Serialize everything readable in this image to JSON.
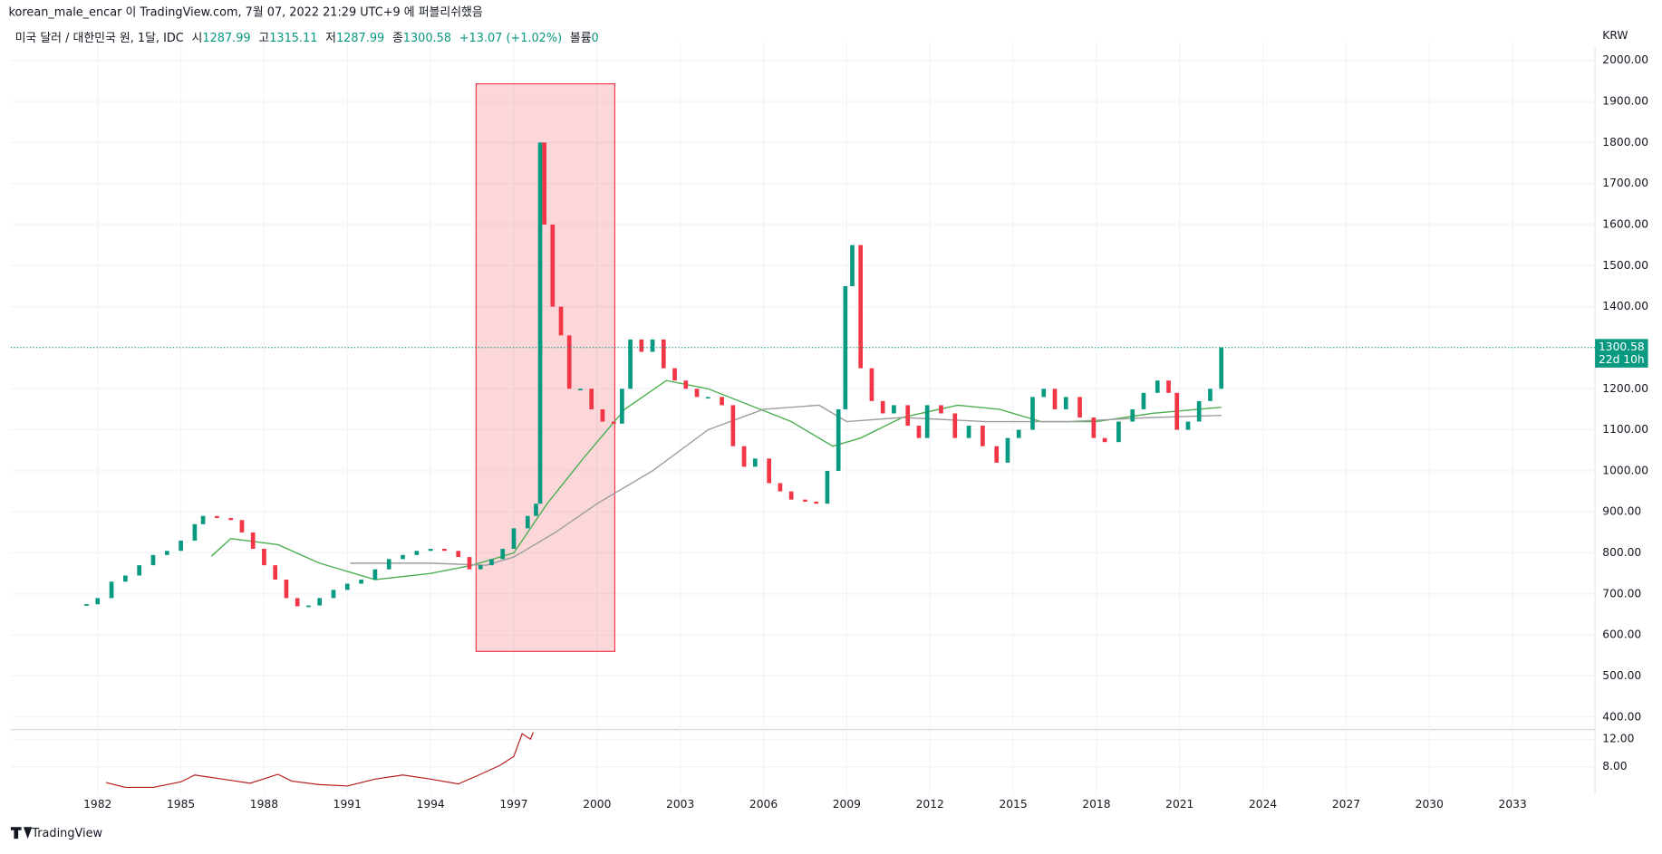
{
  "header": "korean_male_encar 이 TradingView.com, 7월 07, 2022 21:29 UTC+9 에 퍼블리쉬했음",
  "legend": {
    "symbol": "미국 달러 / 대한민국 원, 1달, IDC",
    "ohlc": [
      {
        "label": "시",
        "value": "1287.99"
      },
      {
        "label": "고",
        "value": "1315.11"
      },
      {
        "label": "저",
        "value": "1287.99"
      },
      {
        "label": "종",
        "value": "1300.58"
      }
    ],
    "change": "+13.07 (+1.02%)",
    "volume": {
      "label": "볼륨",
      "value": "0"
    }
  },
  "footer": "TradingView",
  "chart_data": {
    "type": "candle",
    "currency": "KRW",
    "up_color": "#089981",
    "down_color": "#f23645",
    "grid": true,
    "xlim": [
      1978.87,
      2035.78
    ],
    "xticks": [
      1982,
      1985,
      1988,
      1991,
      1994,
      1997,
      2000,
      2003,
      2006,
      2009,
      2012,
      2015,
      2018,
      2021,
      2024,
      2027,
      2030,
      2033
    ],
    "ylim": [
      372,
      2044
    ],
    "yticks": [
      {
        "value": 400,
        "label": "400.00"
      },
      {
        "value": 500,
        "label": "500.00"
      },
      {
        "value": 600,
        "label": "600.00"
      },
      {
        "value": 700,
        "label": "700.00"
      },
      {
        "value": 800,
        "label": "800.00"
      },
      {
        "value": 900,
        "label": "900.00"
      },
      {
        "value": 1000,
        "label": "1000.00"
      },
      {
        "value": 1100,
        "label": "1100.00"
      },
      {
        "value": 1200,
        "label": "1200.00"
      },
      {
        "value": 1300,
        "label": "1300.00"
      },
      {
        "value": 1400,
        "label": "1400.00"
      },
      {
        "value": 1500,
        "label": "1500.00"
      },
      {
        "value": 1600,
        "label": "1600.00"
      },
      {
        "value": 1700,
        "label": "1700.00"
      },
      {
        "value": 1800,
        "label": "1800.00"
      },
      {
        "value": 1900,
        "label": "1900.00"
      },
      {
        "value": 2000,
        "label": "2000.00"
      }
    ],
    "x": [
      1981.6,
      1982.0,
      1982.5,
      1983.0,
      1983.5,
      1984.0,
      1984.5,
      1985.0,
      1985.5,
      1985.8,
      1986.3,
      1986.8,
      1987.2,
      1987.6,
      1988.0,
      1988.4,
      1988.8,
      1989.2,
      1989.6,
      1990.0,
      1990.5,
      1991.0,
      1991.5,
      1992.0,
      1992.5,
      1993.0,
      1993.5,
      1994.0,
      1994.5,
      1995.0,
      1995.4,
      1995.8,
      1996.2,
      1996.6,
      1997.0,
      1997.5,
      1997.8,
      1997.95,
      1998.1,
      1998.4,
      1998.7,
      1999.0,
      1999.4,
      1999.8,
      2000.2,
      2000.6,
      2000.9,
      2001.2,
      2001.6,
      2002.0,
      2002.4,
      2002.8,
      2003.2,
      2003.6,
      2004.0,
      2004.5,
      2004.9,
      2005.3,
      2005.7,
      2006.2,
      2006.6,
      2007.0,
      2007.5,
      2007.9,
      2008.3,
      2008.7,
      2008.95,
      2009.2,
      2009.5,
      2009.9,
      2010.3,
      2010.7,
      2011.2,
      2011.6,
      2011.9,
      2012.4,
      2012.9,
      2013.4,
      2013.9,
      2014.4,
      2014.8,
      2015.2,
      2015.7,
      2016.1,
      2016.5,
      2016.9,
      2017.4,
      2017.9,
      2018.3,
      2018.8,
      2019.3,
      2019.7,
      2020.2,
      2020.6,
      2020.9,
      2021.3,
      2021.7,
      2022.1,
      2022.5
    ],
    "close": [
      675,
      690,
      730,
      745,
      770,
      795,
      805,
      830,
      870,
      890,
      885,
      880,
      850,
      810,
      770,
      735,
      690,
      670,
      672,
      690,
      710,
      725,
      735,
      760,
      785,
      795,
      805,
      810,
      805,
      790,
      760,
      770,
      785,
      810,
      860,
      890,
      920,
      1800,
      1600,
      1400,
      1330,
      1200,
      1200,
      1150,
      1120,
      1115,
      1200,
      1320,
      1290,
      1320,
      1250,
      1220,
      1200,
      1180,
      1180,
      1160,
      1060,
      1010,
      1030,
      970,
      950,
      930,
      925,
      920,
      1000,
      1150,
      1450,
      1550,
      1250,
      1170,
      1140,
      1160,
      1110,
      1080,
      1160,
      1140,
      1080,
      1110,
      1060,
      1020,
      1080,
      1100,
      1180,
      1200,
      1150,
      1180,
      1130,
      1080,
      1070,
      1120,
      1150,
      1190,
      1220,
      1190,
      1100,
      1120,
      1170,
      1200,
      1300.58
    ],
    "moving_averages": [
      {
        "color": "#4caf50",
        "x": [
          1986.1,
          1986.8,
          1988.5,
          1990,
          1992,
          1994,
          1995.5,
          1997,
          1998.2,
          1999.5,
          2001,
          2002.5,
          2004,
          2005.5,
          2007,
          2008.5,
          2009.5,
          2011,
          2013,
          2014.5,
          2016,
          2018,
          2020,
          2022.5
        ],
        "values": [
          792,
          835,
          820,
          775,
          735,
          750,
          770,
          800,
          920,
          1030,
          1150,
          1220,
          1200,
          1160,
          1120,
          1060,
          1080,
          1130,
          1160,
          1150,
          1120,
          1120,
          1140,
          1155
        ]
      },
      {
        "color": "#9e9e9e",
        "x": [
          1991.1,
          1994,
          1996,
          1997,
          1998.5,
          2000,
          2002,
          2004,
          2006,
          2008,
          2009,
          2011,
          2014,
          2017,
          2020,
          2022.5
        ],
        "values": [
          775,
          775,
          770,
          790,
          850,
          920,
          1000,
          1100,
          1150,
          1160,
          1120,
          1130,
          1120,
          1120,
          1130,
          1135
        ]
      }
    ],
    "last_price": 1300.58,
    "countdown": "22d 10h",
    "highlight": {
      "color": "#f23645",
      "x": [
        1995.64,
        2000.64
      ],
      "y": [
        560,
        1943
      ]
    },
    "indicator": {
      "color": "#b71c1c",
      "ylim": [
        4,
        13.23
      ],
      "yticks": [
        {
          "value": 8,
          "label": "8.00"
        },
        {
          "value": 12,
          "label": "12.00"
        }
      ],
      "x": [
        1982.3,
        1983,
        1984,
        1985,
        1985.5,
        1986.5,
        1987.5,
        1988.5,
        1989,
        1990,
        1991,
        1992,
        1993,
        1994,
        1995,
        1995.8,
        1996.5,
        1997,
        1997.3,
        1997.6,
        1997.7
      ],
      "values": [
        5.7,
        5.0,
        5.0,
        5.8,
        6.8,
        6.2,
        5.6,
        6.9,
        5.9,
        5.4,
        5.2,
        6.2,
        6.8,
        6.2,
        5.5,
        6.9,
        8.2,
        9.5,
        12.8,
        12.0,
        13.0
      ]
    }
  }
}
